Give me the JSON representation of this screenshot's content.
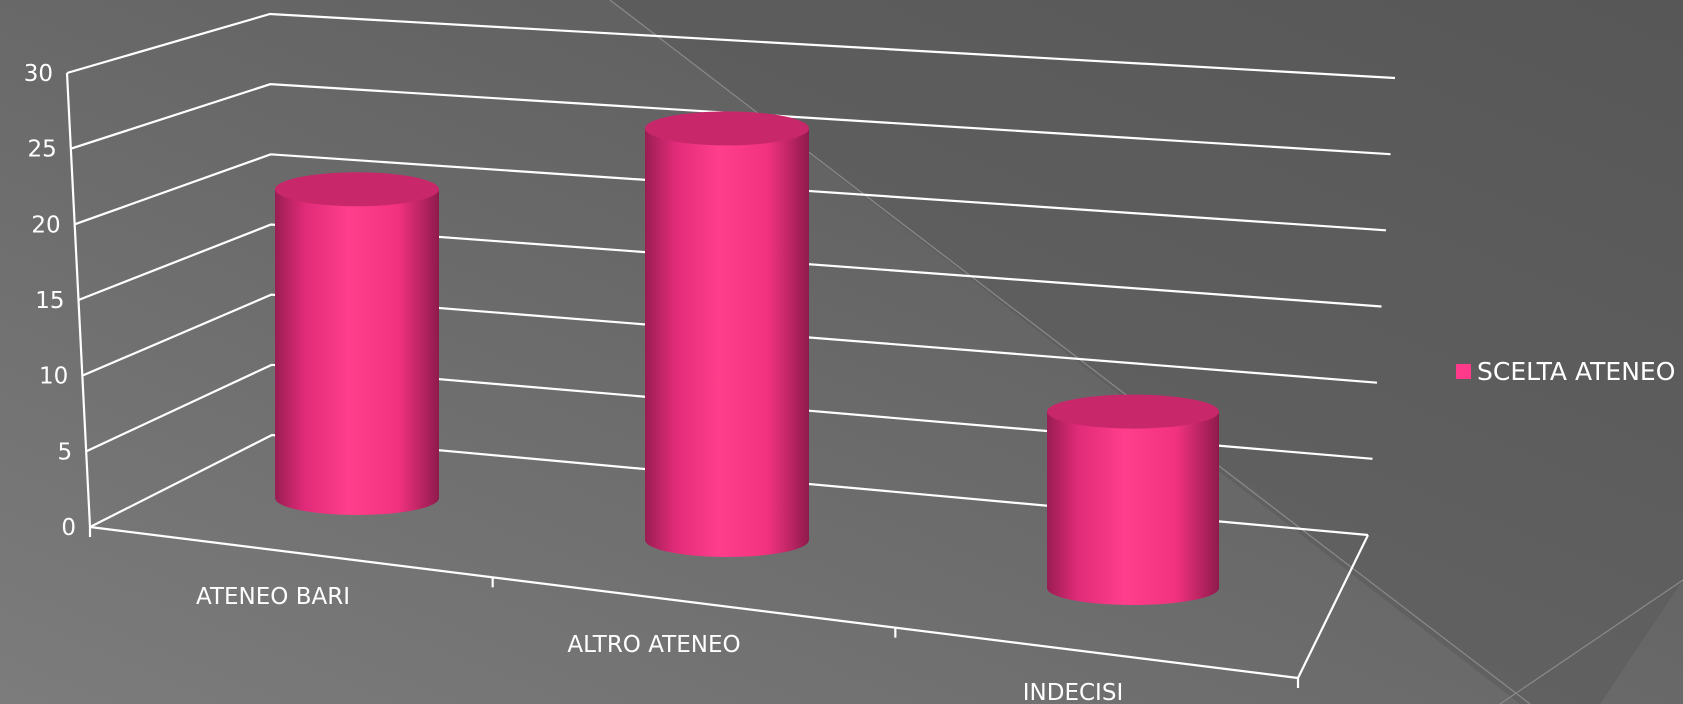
{
  "chart_data": {
    "type": "bar",
    "style": "3d-cylinder",
    "categories": [
      "ATENEO BARI",
      "ALTRO ATENEO",
      "INDECISI"
    ],
    "series": [
      {
        "name": "SCELTA ATENEO",
        "values": [
          21,
          28,
          12
        ],
        "color": "#ff3a8a"
      }
    ],
    "y_ticks": [
      "0",
      "5",
      "10",
      "15",
      "20",
      "25",
      "30"
    ],
    "ylim": [
      0,
      30
    ],
    "grid": true,
    "legend_position": "right",
    "colors": {
      "background_light": "#7a7a7a",
      "background_dark": "#555555",
      "axis": "#ffffff",
      "bar_main": "#ff3a8a",
      "bar_top": "#c8286a",
      "bar_shade": "#9a1d52"
    }
  }
}
